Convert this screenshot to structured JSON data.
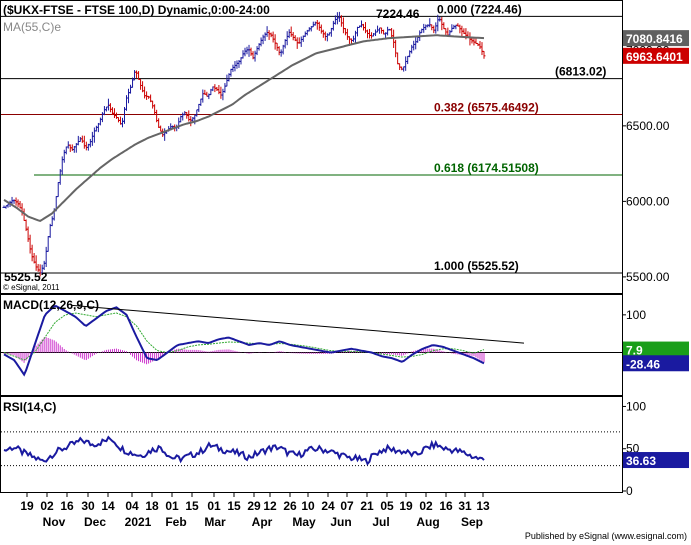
{
  "header": {
    "symbol_line": "($UKX-FTSE - FTSE 100,D) Dynamic,0:00-24:00",
    "ma_label": "MA(55,C)e",
    "copyright": "© eSignal, 2011"
  },
  "price_panel": {
    "ylim": [
      5400,
      7320
    ],
    "ticks": [
      {
        "value": 7000,
        "label": "7000.00"
      },
      {
        "value": 6500,
        "label": "6500.00"
      },
      {
        "value": 6000,
        "label": "6000.00"
      },
      {
        "value": 5500,
        "label": "5500.00"
      }
    ],
    "fib_levels": [
      {
        "value": 7224.46,
        "label": "0.000 (7224.46)",
        "color": "#000000"
      },
      {
        "value": 6813.02,
        "label": "(6813.02)",
        "color": "#000000"
      },
      {
        "value": 6575.46492,
        "label": "0.382 (6575.46492)",
        "color": "#8b0000"
      },
      {
        "value": 6174.51508,
        "label": "0.618 (6174.51508)",
        "color": "#006400"
      },
      {
        "value": 5525.52,
        "label": "1.000 (5525.52)",
        "color": "#000000"
      }
    ],
    "annotations": {
      "high": "7224.46",
      "low": "5525.52"
    },
    "ma_value": {
      "value": 7080.8416,
      "label": "7080.8416",
      "color": "#606060"
    },
    "last_price": {
      "value": 6963.6401,
      "label": "6963.6401",
      "color": "#cc0000"
    }
  },
  "macd_panel": {
    "title": "MACD(12,26,9,C)",
    "ylim": [
      -110,
      150
    ],
    "ticks": [
      {
        "value": 100,
        "label": "100"
      }
    ],
    "signal_badge": {
      "value": 7.9,
      "label": "7.9",
      "color": "#1a9e1a"
    },
    "macd_badge": {
      "value": -28.46,
      "label": "-28.46",
      "color": "#1a1aa0"
    }
  },
  "rsi_panel": {
    "title": "RSI(14,C)",
    "ylim": [
      0,
      110
    ],
    "ticks": [
      {
        "value": 100,
        "label": "100"
      },
      {
        "value": 50,
        "label": "50"
      },
      {
        "value": 0,
        "label": "0"
      }
    ],
    "rsi_badge": {
      "value": 36.63,
      "label": "36.63",
      "color": "#1a1aa0"
    }
  },
  "x_axis": {
    "day_labels": [
      "19",
      "02",
      "16",
      "30",
      "14",
      "04",
      "18",
      "01",
      "15",
      "01",
      "15",
      "29",
      "12",
      "26",
      "10",
      "24",
      "07",
      "21",
      "05",
      "19",
      "02",
      "16",
      "31",
      "13"
    ],
    "month_labels": [
      "Nov",
      "Dec",
      "2021",
      "Feb",
      "Mar",
      "Apr",
      "May",
      "Jun",
      "Jul",
      "Aug",
      "Sep"
    ]
  },
  "footer": "Published by eSignal (www.esignal.com)",
  "chart_data": {
    "type": "line",
    "title": "$UKX-FTSE - FTSE 100,D",
    "x_range": [
      "2020-10-19",
      "2021-09-13"
    ],
    "price": {
      "anchors": [
        5960,
        5985,
        6010,
        5990,
        5930,
        5800,
        5650,
        5570,
        5525.52,
        5600,
        5820,
        5920,
        6130,
        6300,
        6380,
        6340,
        6380,
        6420,
        6350,
        6390,
        6470,
        6520,
        6600,
        6640,
        6580,
        6550,
        6500,
        6680,
        6760,
        6875,
        6780,
        6700,
        6690,
        6620,
        6500,
        6440,
        6470,
        6500,
        6480,
        6560,
        6590,
        6530,
        6560,
        6640,
        6720,
        6690,
        6760,
        6740,
        6700,
        6780,
        6870,
        6900,
        6930,
        6990,
        7010,
        6950,
        7020,
        7080,
        7120,
        7100,
        7040,
        6970,
        7060,
        7120,
        7080,
        7040,
        7090,
        7130,
        7160,
        7190,
        7130,
        7090,
        7120,
        7200,
        7224.46,
        7140,
        7080,
        7060,
        7150,
        7170,
        7120,
        7090,
        7120,
        7150,
        7100,
        7150,
        7060,
        6900,
        6870,
        6950,
        7020,
        7060,
        7130,
        7160,
        7170,
        7130,
        7220,
        7150,
        7100,
        7150,
        7170,
        7130,
        7100,
        7070,
        7050,
        7030,
        6963.64
      ]
    },
    "ma55": {
      "anchors": [
        6010,
        5960,
        5900,
        5870,
        5920,
        6000,
        6080,
        6150,
        6220,
        6280,
        6330,
        6380,
        6420,
        6450,
        6480,
        6510,
        6530,
        6560,
        6600,
        6640,
        6700,
        6750,
        6800,
        6850,
        6900,
        6940,
        6980,
        7000,
        7020,
        7040,
        7060,
        7070,
        7080,
        7085,
        7090,
        7095,
        7100,
        7095,
        7090,
        7085,
        7080.84
      ]
    },
    "macd": {
      "macd_anchors": [
        -5,
        -20,
        -60,
        20,
        100,
        125,
        110,
        95,
        70,
        90,
        110,
        120,
        100,
        40,
        -15,
        -20,
        0,
        20,
        25,
        30,
        25,
        35,
        40,
        30,
        20,
        25,
        20,
        30,
        20,
        15,
        10,
        5,
        0,
        5,
        10,
        5,
        0,
        -10,
        -15,
        -25,
        -5,
        10,
        20,
        15,
        5,
        -5,
        -15,
        -28.46
      ],
      "signal_anchors": [
        0,
        -10,
        -20,
        0,
        40,
        80,
        100,
        105,
        100,
        95,
        100,
        105,
        95,
        70,
        30,
        5,
        0,
        5,
        15,
        20,
        22,
        25,
        28,
        27,
        25,
        23,
        22,
        24,
        22,
        19,
        15,
        10,
        5,
        3,
        3,
        2,
        0,
        -4,
        -8,
        -12,
        -10,
        -5,
        5,
        10,
        10,
        5,
        -2,
        7.9
      ],
      "trendline": {
        "from": {
          "date": "2020-11-12",
          "value": 125
        },
        "to": {
          "date": "2021-09-27",
          "value": 25
        }
      },
      "zero_line": true
    },
    "rsi": {
      "anchors": [
        48,
        52,
        45,
        40,
        35,
        44,
        50,
        55,
        60,
        55,
        58,
        62,
        50,
        45,
        42,
        48,
        52,
        40,
        38,
        42,
        46,
        54,
        50,
        47,
        44,
        40,
        45,
        50,
        52,
        45,
        42,
        48,
        50,
        48,
        44,
        40,
        38,
        35,
        45,
        50,
        48,
        46,
        42,
        50,
        55,
        50,
        48,
        45,
        40,
        36.63
      ]
    }
  }
}
